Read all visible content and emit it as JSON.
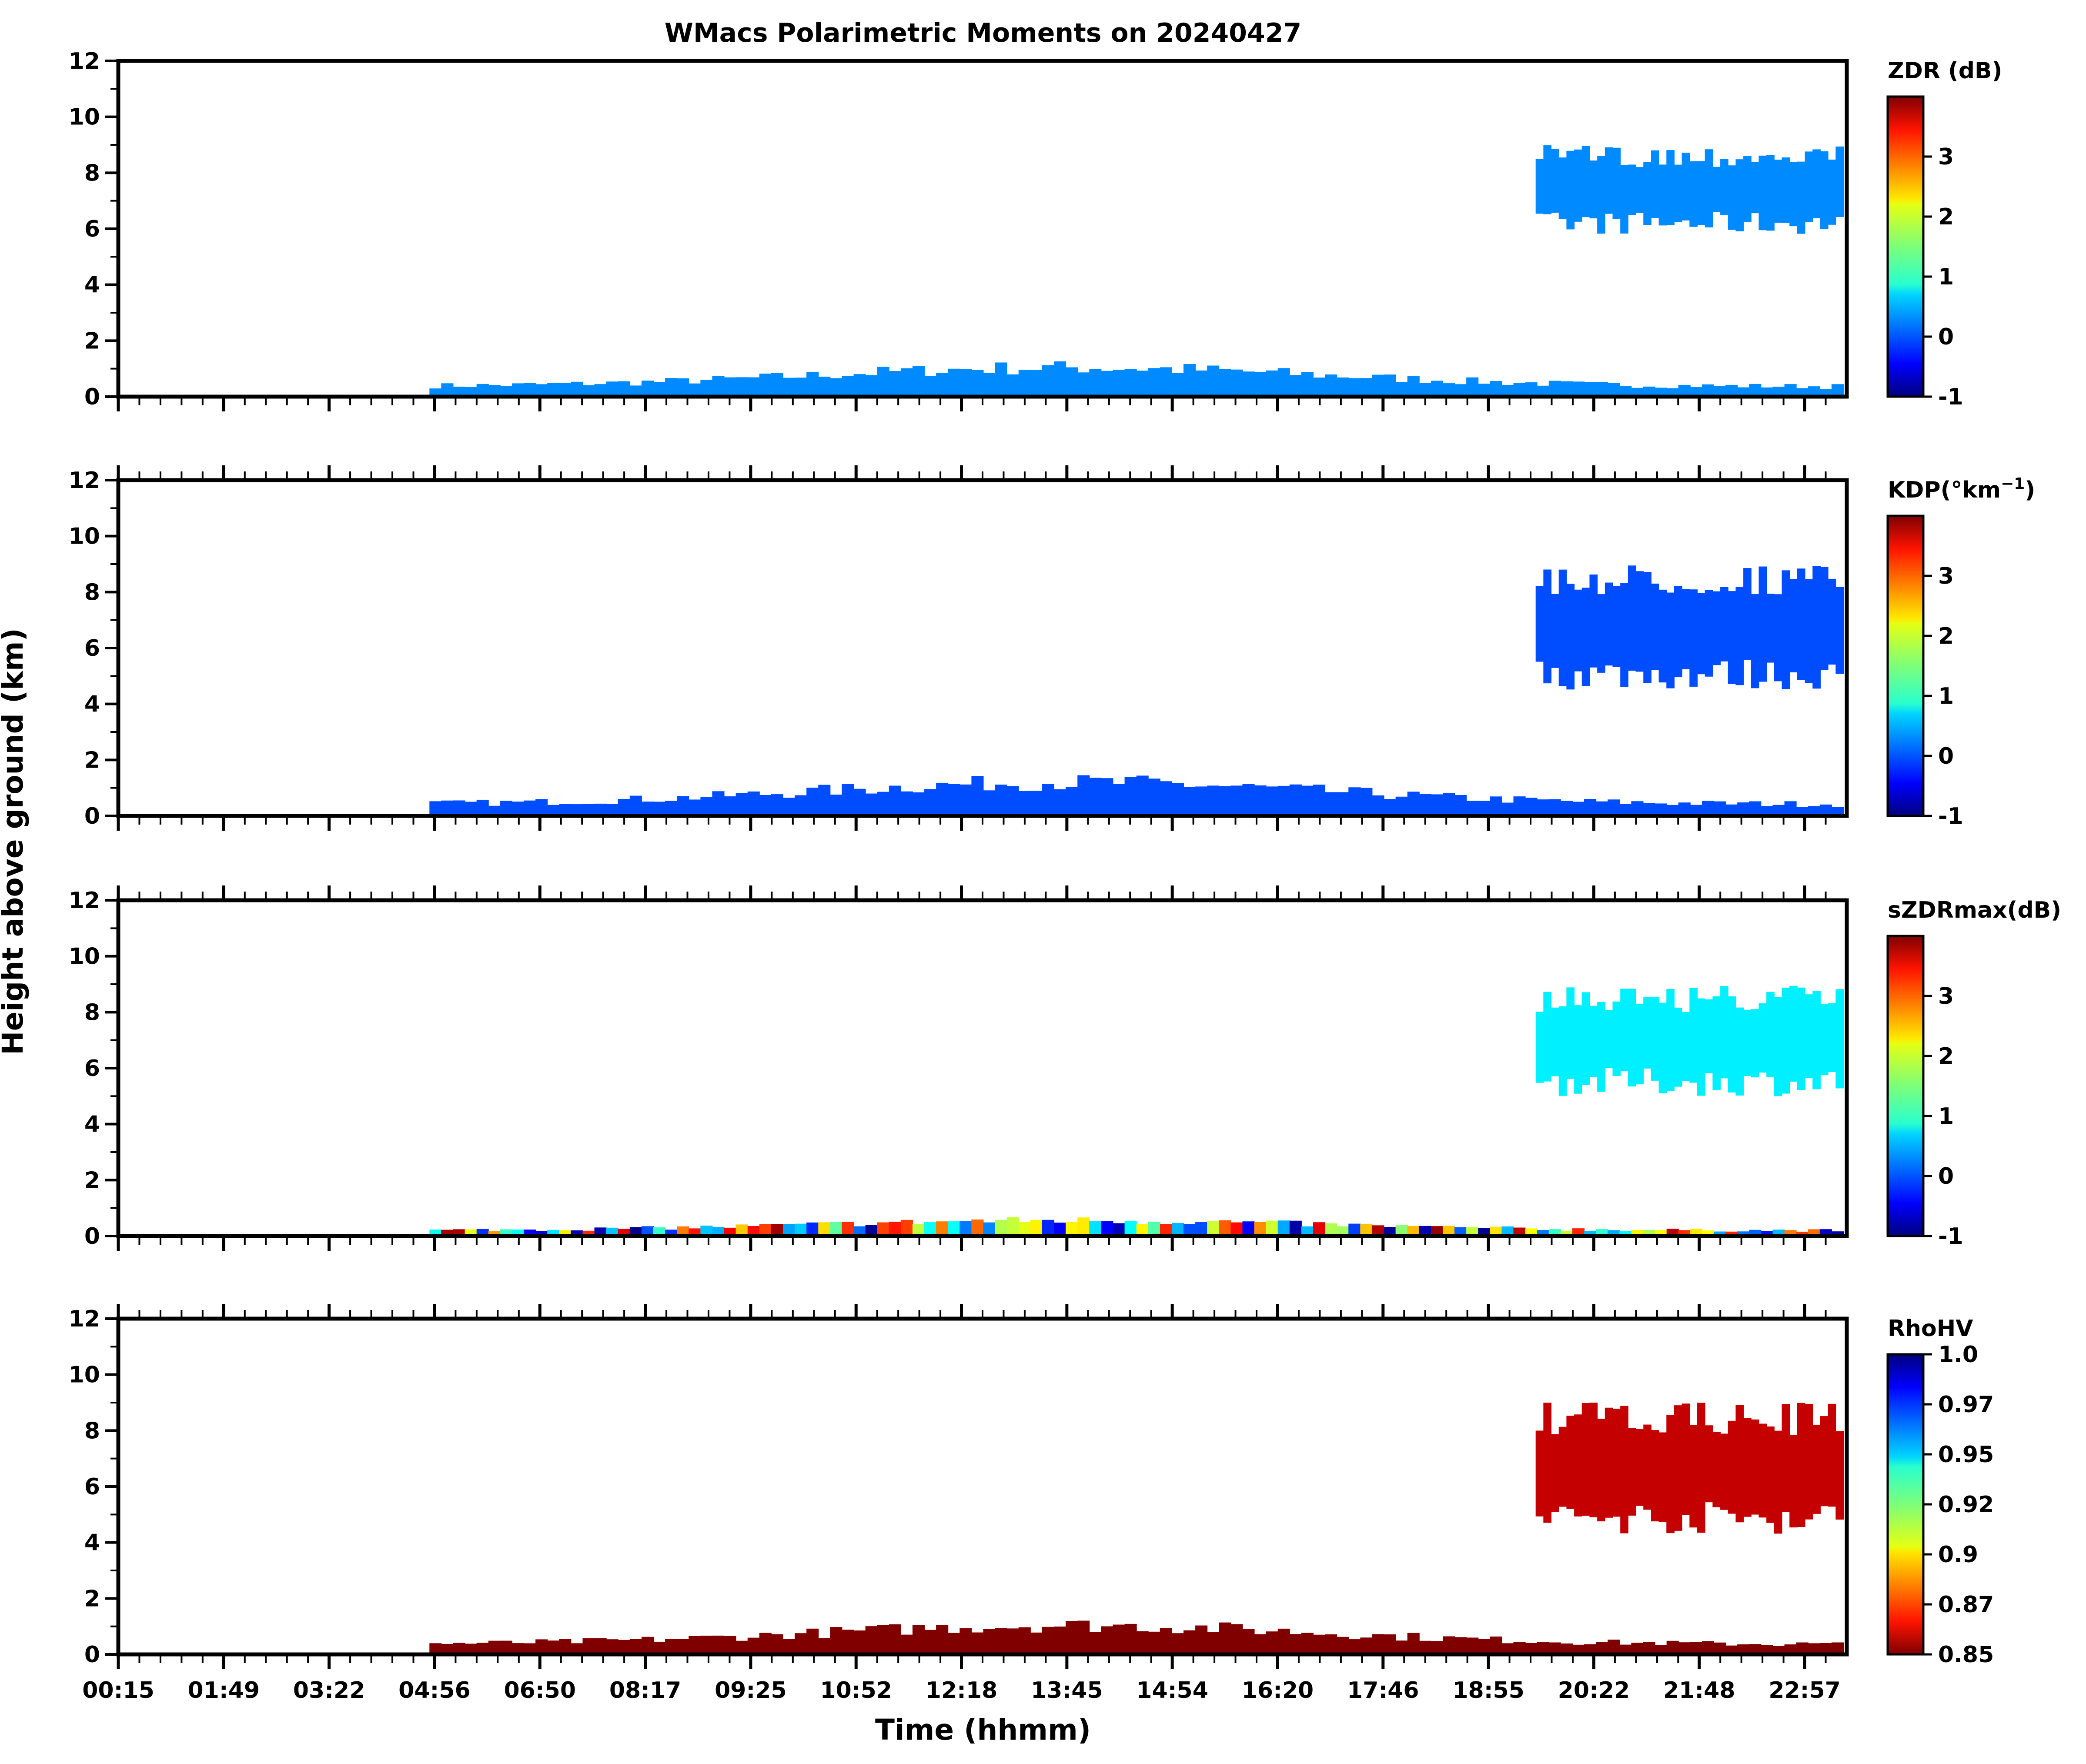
{
  "chart_data": {
    "type": "heatmap",
    "title": "WMacs Polarimetric Moments on 20240427",
    "xlabel": "Time (hhmm)",
    "ylabel": "Height above ground (km)",
    "x_ticks": [
      "00:15",
      "01:49",
      "03:22",
      "04:56",
      "06:50",
      "08:17",
      "09:25",
      "10:52",
      "12:18",
      "13:45",
      "14:54",
      "16:20",
      "17:46",
      "18:55",
      "20:22",
      "21:48",
      "22:57"
    ],
    "y_ticks": [
      0,
      2,
      4,
      6,
      8,
      10,
      12
    ],
    "ylim": [
      0,
      12
    ],
    "panels": [
      {
        "id": "zdr",
        "colorbar_label": "ZDR (dB)",
        "colormap": "jet",
        "colorbar_ticks": [
          "3",
          "2",
          "1",
          "0",
          "-1"
        ],
        "clim": [
          -1,
          4
        ],
        "features": [
          {
            "name": "low-level echo",
            "height_km": [
              0,
              1.3
            ],
            "value": 0.3
          },
          {
            "name": "upper cloud",
            "height_km": [
              5.8,
              9.0
            ],
            "value": 0.3
          }
        ]
      },
      {
        "id": "kdp",
        "colorbar_label": "KDP(°km",
        "colorbar_label_superscript": "−1",
        "colorbar_label_tail": ")",
        "colormap": "jet",
        "colorbar_ticks": [
          "3",
          "2",
          "1",
          "0",
          "-1"
        ],
        "clim": [
          -1,
          4
        ],
        "features": [
          {
            "name": "low-level echo",
            "height_km": [
              0,
              1.5
            ],
            "value": 0.0
          },
          {
            "name": "upper cloud",
            "height_km": [
              4.5,
              9.0
            ],
            "value": 0.0
          }
        ]
      },
      {
        "id": "szdrmax",
        "colorbar_label": "sZDRmax(dB)",
        "colormap": "jet",
        "colorbar_ticks": [
          "3",
          "2",
          "1",
          "0",
          "-1"
        ],
        "clim": [
          -1,
          4
        ],
        "features": [
          {
            "name": "near-surface speckle",
            "height_km": [
              0,
              0.7
            ],
            "value": 1.5
          },
          {
            "name": "upper cloud",
            "height_km": [
              5.0,
              9.0
            ],
            "value": 0.8
          }
        ]
      },
      {
        "id": "rhohv",
        "colorbar_label": "RhoHV",
        "colormap": "jet_r",
        "colorbar_ticks": [
          "1.0",
          "0.97",
          "0.95",
          "0.92",
          "0.9",
          "0.87",
          "0.85"
        ],
        "clim": [
          0.85,
          1.0
        ],
        "features": [
          {
            "name": "low-level echo",
            "height_km": [
              0,
              1.3
            ],
            "value": 0.85
          },
          {
            "name": "upper cloud",
            "height_km": [
              4.3,
              9.0
            ],
            "value": 0.86
          }
        ]
      }
    ]
  }
}
